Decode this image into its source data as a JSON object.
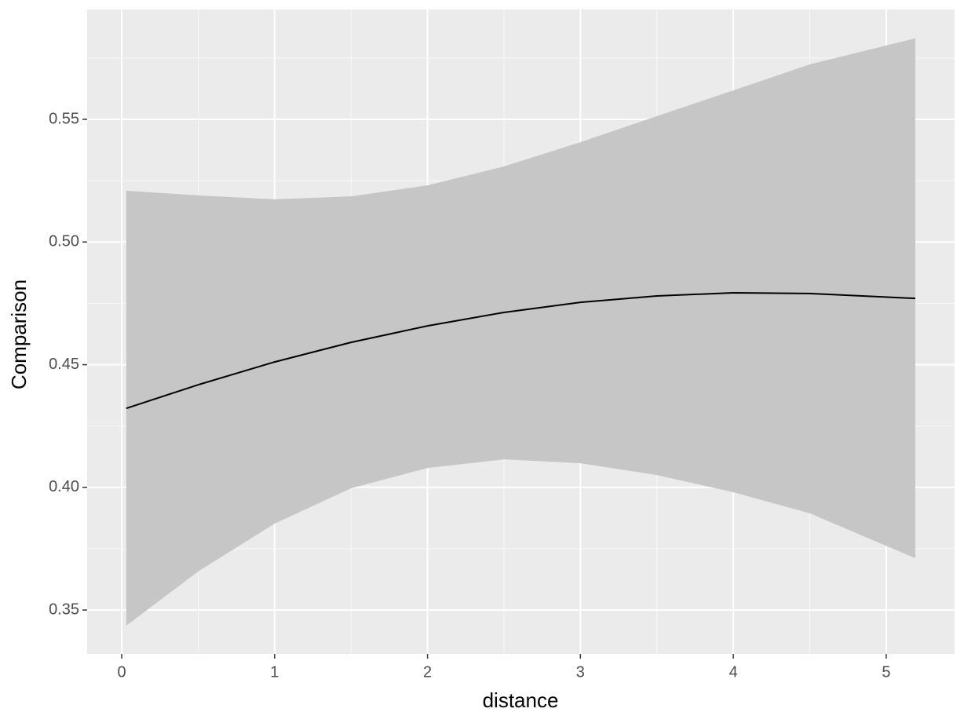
{
  "chart_data": {
    "type": "line",
    "x_label": "distance",
    "y_label": "Comparison",
    "x": [
      0.03,
      0.5,
      1,
      1.5,
      2,
      2.5,
      3,
      3.5,
      4,
      4.5,
      5.19
    ],
    "values": [
      0.4322,
      0.4418,
      0.4511,
      0.4591,
      0.4658,
      0.4713,
      0.4754,
      0.478,
      0.4793,
      0.479,
      0.477
    ],
    "band_upper": [
      0.5209,
      0.519,
      0.5174,
      0.5186,
      0.5231,
      0.5308,
      0.5407,
      0.5513,
      0.5618,
      0.5724,
      0.583
    ],
    "band_lower": [
      0.3436,
      0.3657,
      0.3852,
      0.3996,
      0.4079,
      0.4114,
      0.4098,
      0.405,
      0.398,
      0.3894,
      0.3711
    ],
    "color": "#000000",
    "band_color": "#c6c6c6",
    "panel_color": "#ebebeb",
    "xlim": [
      -0.226,
      5.447
    ],
    "ylim": [
      0.3321,
      0.5948
    ],
    "xticks": [
      0,
      1,
      2,
      3,
      4,
      5
    ],
    "yticks": [
      {
        "value": 0.35,
        "label": "0.35"
      },
      {
        "value": 0.4,
        "label": "0.40"
      },
      {
        "value": 0.45,
        "label": "0.45"
      },
      {
        "value": 0.5,
        "label": "0.50"
      },
      {
        "value": 0.55,
        "label": "0.55"
      }
    ],
    "grid": true
  }
}
